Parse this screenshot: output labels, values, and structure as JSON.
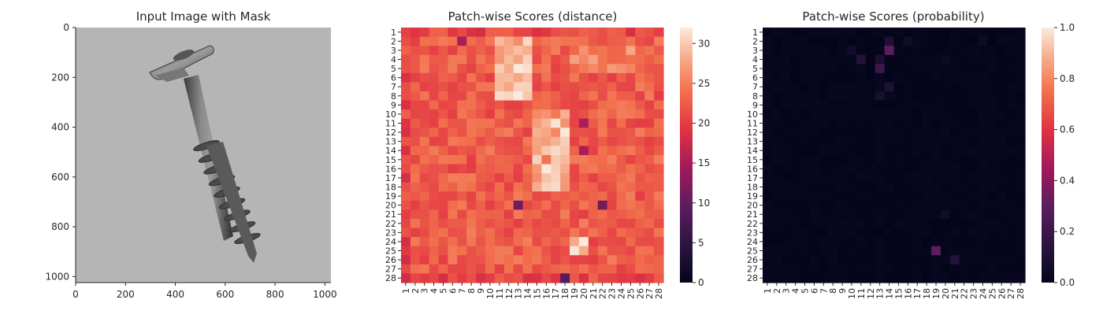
{
  "chart_data": [
    {
      "type": "image",
      "title": "Input Image with Mask",
      "xlim": [
        0,
        1024
      ],
      "ylim": [
        1024,
        0
      ],
      "xticks": [
        "0",
        "200",
        "400",
        "600",
        "800",
        "1000"
      ],
      "yticks": [
        "0",
        "200",
        "400",
        "600",
        "800",
        "1000"
      ],
      "image_description": "grayscale photo of a metal screw on a light gray background"
    },
    {
      "type": "heatmap",
      "title": "Patch-wise Scores (distance)",
      "rows": [
        "1",
        "2",
        "3",
        "4",
        "5",
        "6",
        "7",
        "8",
        "9",
        "10",
        "11",
        "12",
        "13",
        "14",
        "15",
        "16",
        "17",
        "18",
        "19",
        "20",
        "21",
        "22",
        "23",
        "24",
        "25",
        "26",
        "27",
        "28"
      ],
      "cols": [
        "1",
        "2",
        "3",
        "4",
        "5",
        "6",
        "7",
        "8",
        "9",
        "10",
        "11",
        "12",
        "13",
        "14",
        "15",
        "16",
        "17",
        "18",
        "19",
        "20",
        "21",
        "22",
        "23",
        "24",
        "25",
        "26",
        "27",
        "28"
      ],
      "colorbar": {
        "min": 0,
        "max": 32,
        "ticks": [
          "0",
          "5",
          "10",
          "15",
          "20",
          "25",
          "30"
        ],
        "colormap": "rocket"
      },
      "notes": "values mostly 19-26, high (28-32) along screw axis: rows 2-8 cols 11-14, rows 10-18 cols 15-18, rows 24-25 cols 19-20; low (~10-15) spots at row 20 col 13, row 20 col 22, row 28 col 18"
    },
    {
      "type": "heatmap",
      "title": "Patch-wise Scores (probability)",
      "rows": [
        "1",
        "2",
        "3",
        "4",
        "5",
        "6",
        "7",
        "8",
        "9",
        "10",
        "11",
        "12",
        "13",
        "14",
        "15",
        "16",
        "17",
        "18",
        "19",
        "20",
        "21",
        "22",
        "23",
        "24",
        "25",
        "26",
        "27",
        "28"
      ],
      "cols": [
        "1",
        "2",
        "3",
        "4",
        "5",
        "6",
        "7",
        "8",
        "9",
        "10",
        "11",
        "12",
        "13",
        "14",
        "15",
        "16",
        "17",
        "18",
        "19",
        "20",
        "21",
        "22",
        "23",
        "24",
        "25",
        "26",
        "27",
        "28"
      ],
      "colorbar": {
        "min": 0.0,
        "max": 1.0,
        "ticks": [
          "0.0",
          "0.2",
          "0.4",
          "0.6",
          "0.8",
          "1.0"
        ],
        "colormap": "rocket"
      },
      "notes": "almost all near 0; small highlights near row 3 col 14 (~0.3), row 5 col 13 (~0.2), row 25 col 19 (~0.3)"
    }
  ]
}
